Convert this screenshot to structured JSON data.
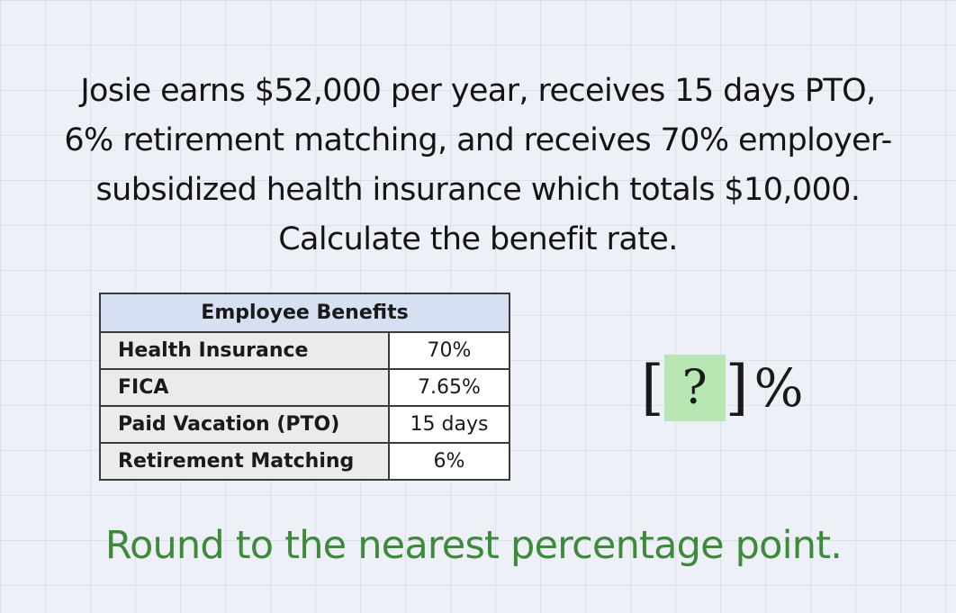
{
  "question": {
    "lines": [
      "Josie earns $52,000 per year, receives 15 days PTO,",
      "6% retirement matching, and receives 70% employer-",
      "subsidized health insurance which totals $10,000.",
      "Calculate the benefit rate."
    ]
  },
  "benefits_table": {
    "header": "Employee Benefits",
    "rows": [
      {
        "label": "Health Insurance",
        "value": "70%"
      },
      {
        "label": "FICA",
        "value": "7.65%"
      },
      {
        "label": "Paid Vacation (PTO)",
        "value": "15 days"
      },
      {
        "label": "Retirement Matching",
        "value": "6%"
      }
    ]
  },
  "answer": {
    "open_bracket": "[",
    "placeholder": "?",
    "close_bracket": "]",
    "unit": "%",
    "box_color": "#b9e7b3"
  },
  "instruction": {
    "text": "Round to the nearest percentage point.",
    "color": "#3d8a3a"
  }
}
